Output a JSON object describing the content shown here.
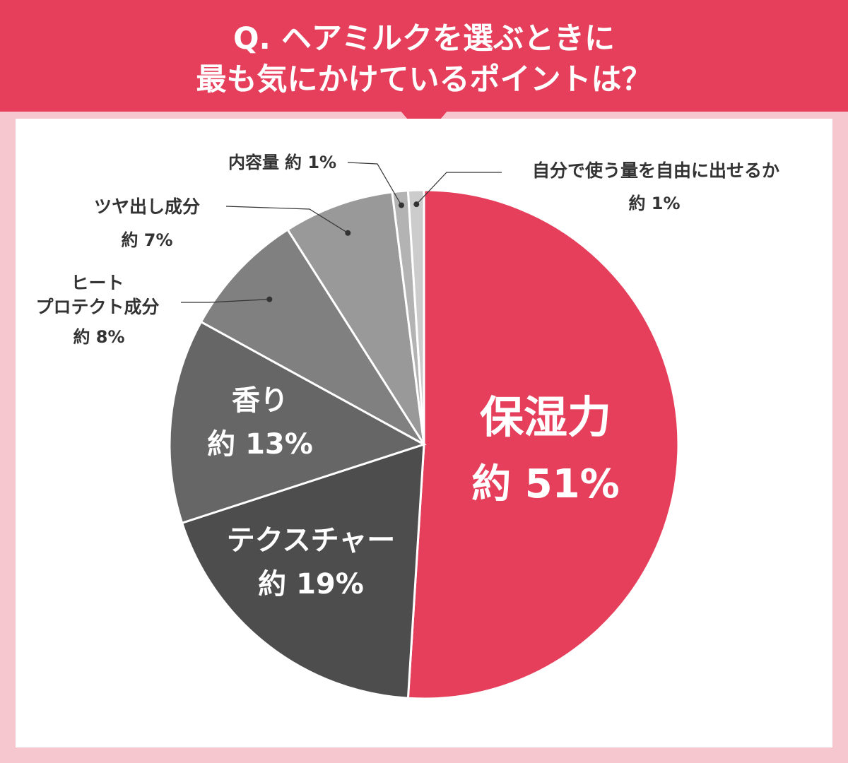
{
  "title": {
    "line1": "Q. ヘアミルクを選ぶときに",
    "line2": "最も気にかけているポイントは？"
  },
  "colors": {
    "accent": "#e63f5c",
    "background": "#f7c7cf",
    "panel": "#ffffff"
  },
  "chart_data": {
    "type": "pie",
    "start": "12 o'clock",
    "direction": "clockwise",
    "slices": [
      {
        "label": "保湿力",
        "value": 51,
        "value_text": "約 51%",
        "color": "#e63f5c"
      },
      {
        "label": "テクスチャー",
        "value": 19,
        "value_text": "約 19%",
        "color": "#4d4d4d"
      },
      {
        "label": "香り",
        "value": 13,
        "value_text": "約 13%",
        "color": "#666666"
      },
      {
        "label": "ヒート\nプロテクト成分",
        "value": 8,
        "value_text": "約 8%",
        "color": "#808080"
      },
      {
        "label": "ツヤ出し成分",
        "value": 7,
        "value_text": "約 7%",
        "color": "#999999"
      },
      {
        "label": "内容量",
        "value": 1,
        "value_text": "約 1%",
        "color": "#b3b3b3"
      },
      {
        "label": "自分で使う量を自由に出せるか",
        "value": 1,
        "value_text": "約 1%",
        "color": "#cccccc"
      }
    ]
  }
}
